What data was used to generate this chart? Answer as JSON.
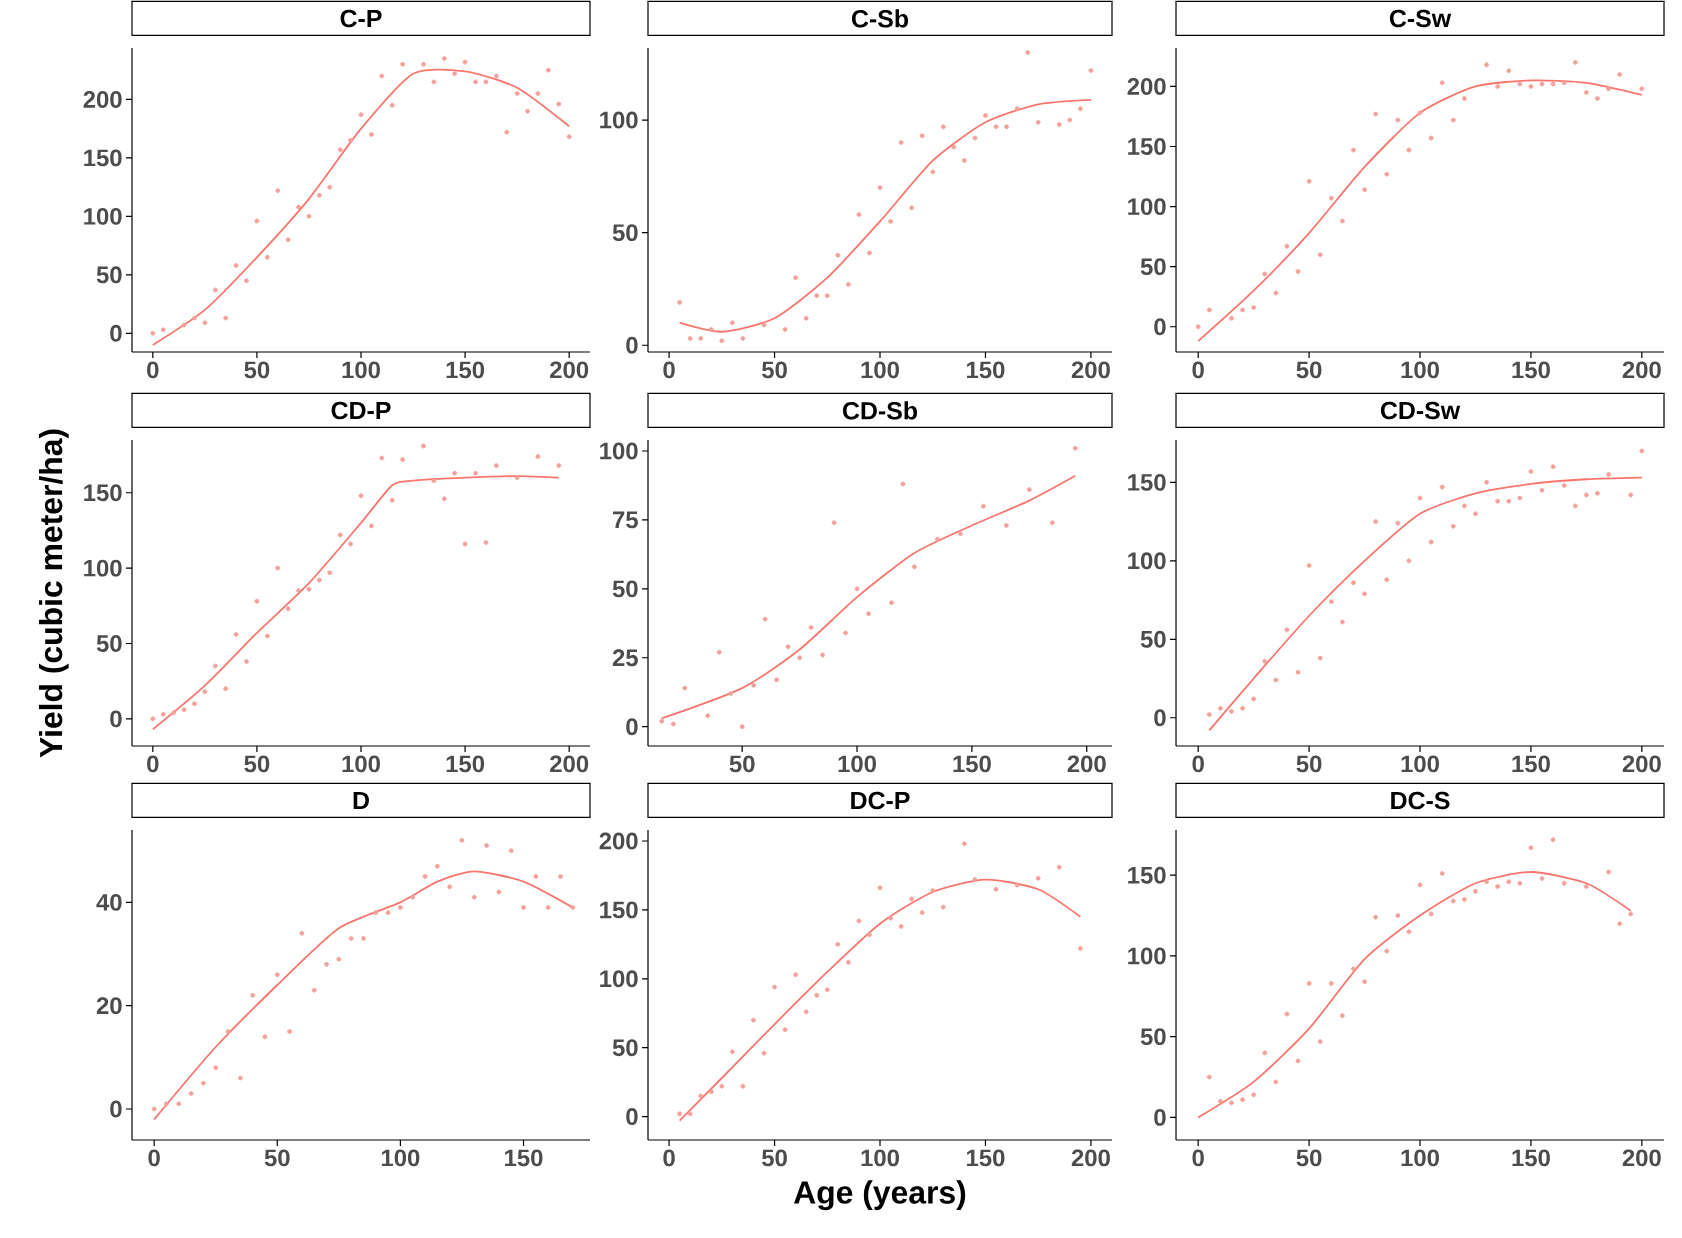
{
  "chart_data": [
    {
      "type": "scatter",
      "title": "C-P",
      "xlim": [
        -10,
        210
      ],
      "ylim": [
        -16,
        244
      ],
      "xticks": [
        0,
        50,
        100,
        150,
        200
      ],
      "yticks": [
        0,
        50,
        100,
        150,
        200
      ],
      "grid": false,
      "series": [
        {
          "type": "scatter",
          "color": "#f4a19b",
          "x": [
            0,
            5,
            15,
            20,
            25,
            30,
            35,
            40,
            45,
            50,
            55,
            60,
            65,
            70,
            75,
            80,
            85,
            90,
            95,
            100,
            105,
            110,
            115,
            120,
            130,
            135,
            140,
            145,
            150,
            155,
            160,
            165,
            170,
            175,
            180,
            185,
            190,
            195,
            200
          ],
          "values": [
            0,
            3,
            7,
            13,
            9,
            37,
            13,
            58,
            45,
            96,
            65,
            122,
            80,
            108,
            100,
            118,
            125,
            157,
            165,
            187,
            170,
            220,
            195,
            230,
            230,
            215,
            235,
            222,
            232,
            215,
            215,
            220,
            172,
            205,
            190,
            205,
            225,
            196,
            168
          ]
        },
        {
          "type": "line",
          "line_style": "solid",
          "color": "#f8766d",
          "x": [
            0,
            25,
            50,
            75,
            100,
            125,
            150,
            175,
            200
          ],
          "values": [
            -10,
            20,
            65,
            115,
            175,
            222,
            224,
            210,
            177
          ]
        }
      ]
    },
    {
      "type": "scatter",
      "title": "C-Sb",
      "xlim": [
        -10,
        210
      ],
      "ylim": [
        -3,
        132
      ],
      "xticks": [
        0,
        50,
        100,
        150,
        200
      ],
      "yticks": [
        0,
        50,
        100
      ],
      "grid": false,
      "series": [
        {
          "type": "scatter",
          "color": "#f4a19b",
          "x": [
            5,
            10,
            15,
            20,
            25,
            30,
            35,
            45,
            55,
            60,
            65,
            70,
            75,
            80,
            85,
            90,
            95,
            100,
            105,
            110,
            115,
            120,
            125,
            130,
            135,
            140,
            145,
            150,
            155,
            160,
            165,
            170,
            175,
            185,
            190,
            195,
            200
          ],
          "values": [
            19,
            3,
            3,
            7,
            2,
            10,
            3,
            9,
            7,
            30,
            12,
            22,
            22,
            40,
            27,
            58,
            41,
            70,
            55,
            90,
            61,
            93,
            77,
            97,
            88,
            82,
            92,
            102,
            97,
            97,
            105,
            130,
            99,
            98,
            100,
            105,
            122
          ]
        },
        {
          "type": "line",
          "line_style": "solid",
          "color": "#f8766d",
          "x": [
            5,
            25,
            50,
            75,
            100,
            125,
            150,
            175,
            200
          ],
          "values": [
            10,
            6,
            12,
            30,
            55,
            82,
            99,
            107,
            109
          ]
        }
      ]
    },
    {
      "type": "scatter",
      "title": "C-Sw",
      "xlim": [
        -10,
        210
      ],
      "ylim": [
        -21,
        232
      ],
      "xticks": [
        0,
        50,
        100,
        150,
        200
      ],
      "yticks": [
        0,
        50,
        100,
        150,
        200
      ],
      "grid": false,
      "series": [
        {
          "type": "scatter",
          "color": "#f4a19b",
          "x": [
            0,
            5,
            15,
            20,
            25,
            30,
            35,
            40,
            45,
            50,
            55,
            60,
            65,
            70,
            75,
            80,
            85,
            90,
            95,
            100,
            105,
            110,
            115,
            120,
            130,
            135,
            140,
            145,
            150,
            155,
            160,
            165,
            170,
            175,
            180,
            185,
            190,
            200
          ],
          "values": [
            0,
            14,
            7,
            14,
            16,
            44,
            28,
            67,
            46,
            121,
            60,
            107,
            88,
            147,
            114,
            177,
            127,
            172,
            147,
            178,
            157,
            203,
            172,
            190,
            218,
            200,
            213,
            202,
            200,
            202,
            202,
            203,
            220,
            195,
            190,
            198,
            210,
            198
          ]
        },
        {
          "type": "line",
          "line_style": "solid",
          "color": "#f8766d",
          "x": [
            0,
            25,
            50,
            75,
            100,
            125,
            150,
            175,
            200
          ],
          "values": [
            -12,
            30,
            78,
            133,
            178,
            200,
            205,
            203,
            193
          ]
        }
      ]
    },
    {
      "type": "scatter",
      "title": "CD-P",
      "ylabel": "Yield (cubic meter/ha)",
      "xlim": [
        -10,
        210
      ],
      "ylim": [
        -18,
        185
      ],
      "xticks": [
        0,
        50,
        100,
        150,
        200
      ],
      "yticks": [
        0,
        50,
        100,
        150
      ],
      "grid": false,
      "series": [
        {
          "type": "scatter",
          "color": "#f4a19b",
          "x": [
            0,
            5,
            10,
            15,
            20,
            25,
            30,
            35,
            40,
            45,
            50,
            55,
            60,
            65,
            70,
            75,
            80,
            85,
            90,
            95,
            100,
            105,
            110,
            115,
            120,
            130,
            135,
            140,
            145,
            150,
            155,
            160,
            165,
            175,
            185,
            195
          ],
          "values": [
            0,
            3,
            4,
            6,
            10,
            18,
            35,
            20,
            56,
            38,
            78,
            55,
            100,
            73,
            85,
            86,
            92,
            97,
            122,
            116,
            148,
            128,
            173,
            145,
            172,
            181,
            158,
            146,
            163,
            116,
            163,
            117,
            168,
            160,
            174,
            168
          ]
        },
        {
          "type": "line",
          "line_style": "solid",
          "color": "#f8766d",
          "x": [
            0,
            25,
            50,
            75,
            100,
            115,
            125,
            150,
            175,
            195
          ],
          "values": [
            -7,
            22,
            57,
            90,
            130,
            155,
            158,
            160,
            161,
            160
          ]
        }
      ]
    },
    {
      "type": "scatter",
      "title": "CD-Sb",
      "xlim": [
        9,
        211
      ],
      "ylim": [
        -7,
        104
      ],
      "xticks": [
        50,
        100,
        150,
        200
      ],
      "yticks": [
        0,
        25,
        50,
        75,
        100
      ],
      "grid": false,
      "series": [
        {
          "type": "scatter",
          "color": "#f4a19b",
          "x": [
            15,
            20,
            25,
            35,
            40,
            45,
            50,
            55,
            60,
            65,
            70,
            75,
            80,
            85,
            90,
            95,
            100,
            105,
            115,
            120,
            125,
            135,
            145,
            155,
            165,
            175,
            185,
            195
          ],
          "values": [
            2,
            1,
            14,
            4,
            27,
            12,
            0,
            15,
            39,
            17,
            29,
            25,
            36,
            26,
            74,
            34,
            50,
            41,
            45,
            88,
            58,
            68,
            70,
            80,
            73,
            86,
            74,
            101
          ]
        },
        {
          "type": "line",
          "line_style": "solid",
          "color": "#f8766d",
          "x": [
            15,
            50,
            75,
            100,
            125,
            150,
            175,
            195
          ],
          "values": [
            3,
            14,
            28,
            47,
            63,
            73,
            82,
            91
          ]
        }
      ]
    },
    {
      "type": "scatter",
      "title": "CD-Sw",
      "xlim": [
        -10,
        210
      ],
      "ylim": [
        -18,
        177
      ],
      "xticks": [
        0,
        50,
        100,
        150,
        200
      ],
      "yticks": [
        0,
        50,
        100,
        150
      ],
      "grid": false,
      "series": [
        {
          "type": "scatter",
          "color": "#f4a19b",
          "x": [
            5,
            10,
            15,
            20,
            25,
            30,
            35,
            40,
            45,
            50,
            55,
            60,
            65,
            70,
            75,
            80,
            85,
            90,
            95,
            100,
            105,
            110,
            115,
            120,
            125,
            130,
            135,
            140,
            145,
            150,
            155,
            160,
            165,
            170,
            175,
            180,
            185,
            195,
            200
          ],
          "values": [
            2,
            6,
            4,
            6,
            12,
            36,
            24,
            56,
            29,
            97,
            38,
            74,
            61,
            86,
            79,
            125,
            88,
            124,
            100,
            140,
            112,
            147,
            122,
            135,
            130,
            150,
            138,
            138,
            140,
            157,
            145,
            160,
            148,
            135,
            142,
            143,
            155,
            142,
            170
          ]
        },
        {
          "type": "line",
          "line_style": "solid",
          "color": "#f8766d",
          "x": [
            5,
            25,
            50,
            75,
            100,
            125,
            150,
            175,
            200
          ],
          "values": [
            -8,
            25,
            65,
            100,
            130,
            143,
            149,
            152,
            153
          ]
        }
      ]
    },
    {
      "type": "scatter",
      "title": "D",
      "xlim": [
        -9,
        177
      ],
      "ylim": [
        -6,
        54
      ],
      "xticks": [
        0,
        50,
        100,
        150
      ],
      "yticks": [
        0,
        20,
        40
      ],
      "grid": false,
      "series": [
        {
          "type": "scatter",
          "color": "#f4a19b",
          "x": [
            0,
            5,
            10,
            15,
            20,
            25,
            30,
            35,
            40,
            45,
            50,
            55,
            60,
            65,
            70,
            75,
            80,
            85,
            90,
            95,
            100,
            105,
            110,
            115,
            120,
            125,
            130,
            135,
            140,
            145,
            150,
            155,
            160,
            165,
            170
          ],
          "values": [
            0,
            1,
            1,
            3,
            5,
            8,
            15,
            6,
            22,
            14,
            26,
            15,
            34,
            23,
            28,
            29,
            33,
            33,
            38,
            38,
            39,
            41,
            45,
            47,
            43,
            52,
            41,
            51,
            42,
            50,
            39,
            45,
            39,
            45,
            39
          ]
        },
        {
          "type": "line",
          "line_style": "solid",
          "color": "#f8766d",
          "x": [
            0,
            25,
            50,
            75,
            100,
            115,
            130,
            150,
            170
          ],
          "values": [
            -2,
            12,
            24,
            35,
            40,
            44,
            46,
            44,
            39
          ]
        }
      ]
    },
    {
      "type": "scatter",
      "title": "DC-P",
      "xlabel": "Age (years)",
      "xlim": [
        -10,
        210
      ],
      "ylim": [
        -17,
        208
      ],
      "xticks": [
        0,
        50,
        100,
        150,
        200
      ],
      "yticks": [
        0,
        50,
        100,
        150,
        200
      ],
      "grid": false,
      "series": [
        {
          "type": "scatter",
          "color": "#f4a19b",
          "x": [
            5,
            10,
            15,
            20,
            25,
            30,
            35,
            40,
            45,
            50,
            55,
            60,
            65,
            70,
            75,
            80,
            85,
            90,
            95,
            100,
            105,
            110,
            115,
            120,
            125,
            130,
            140,
            145,
            155,
            165,
            175,
            185,
            195
          ],
          "values": [
            2,
            2,
            15,
            18,
            22,
            47,
            22,
            70,
            46,
            94,
            63,
            103,
            76,
            88,
            92,
            125,
            112,
            142,
            132,
            166,
            144,
            138,
            158,
            148,
            164,
            152,
            198,
            172,
            165,
            168,
            173,
            181,
            122
          ]
        },
        {
          "type": "line",
          "line_style": "solid",
          "color": "#f8766d",
          "x": [
            5,
            25,
            50,
            75,
            100,
            125,
            150,
            175,
            195
          ],
          "values": [
            -3,
            28,
            67,
            105,
            140,
            163,
            172,
            165,
            145
          ]
        }
      ]
    },
    {
      "type": "scatter",
      "title": "DC-S",
      "xlim": [
        -10,
        210
      ],
      "ylim": [
        -14,
        178
      ],
      "xticks": [
        0,
        50,
        100,
        150,
        200
      ],
      "yticks": [
        0,
        50,
        100,
        150
      ],
      "grid": false,
      "series": [
        {
          "type": "scatter",
          "color": "#f4a19b",
          "x": [
            5,
            10,
            15,
            20,
            25,
            30,
            35,
            40,
            45,
            50,
            55,
            60,
            65,
            70,
            75,
            80,
            85,
            90,
            95,
            100,
            105,
            110,
            115,
            120,
            125,
            130,
            135,
            140,
            145,
            150,
            155,
            160,
            165,
            175,
            185,
            190,
            195
          ],
          "values": [
            25,
            10,
            9,
            11,
            14,
            40,
            22,
            64,
            35,
            83,
            47,
            83,
            63,
            92,
            84,
            124,
            103,
            125,
            115,
            144,
            126,
            151,
            134,
            135,
            140,
            146,
            143,
            146,
            145,
            167,
            148,
            172,
            145,
            143,
            152,
            120,
            126
          ]
        },
        {
          "type": "line",
          "line_style": "solid",
          "color": "#f8766d",
          "x": [
            0,
            25,
            50,
            75,
            100,
            125,
            150,
            175,
            195
          ],
          "values": [
            0,
            22,
            55,
            98,
            125,
            145,
            152,
            145,
            128
          ]
        }
      ]
    }
  ]
}
